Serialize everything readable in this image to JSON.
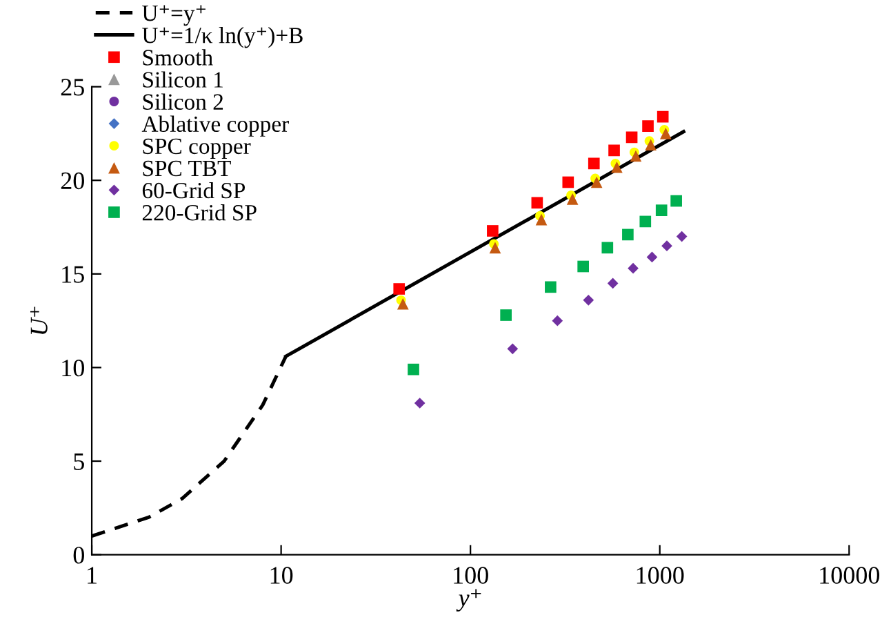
{
  "chart_data": {
    "type": "scatter",
    "xlabel": "y⁺",
    "ylabel": "U⁺",
    "log": "x",
    "xlim": [
      1,
      10000
    ],
    "xticks": [
      1,
      10,
      100,
      1000,
      10000
    ],
    "ylim": [
      0,
      25
    ],
    "yticks": [
      0,
      5,
      10,
      15,
      20,
      25
    ],
    "grid": false,
    "legend": "top left",
    "series": [
      {
        "name": "U⁺=y⁺",
        "type": "line",
        "line_style": "dashed",
        "marker": "none",
        "color": "#000000",
        "x": [
          1,
          2,
          3,
          5,
          8,
          10.6
        ],
        "values": [
          1,
          2,
          3,
          5,
          8,
          10.6
        ]
      },
      {
        "name": "U⁺=1/κ ln(y⁺)+B",
        "type": "line",
        "line_style": "solid",
        "marker": "none",
        "color": "#000000",
        "x": [
          10.6,
          1336
        ],
        "values": [
          10.6,
          22.6
        ]
      },
      {
        "name": "Smooth",
        "marker": "square",
        "color": "#ff0000",
        "x": [
          42,
          131,
          225,
          328,
          449,
          574,
          711,
          866,
          1038
        ],
        "values": [
          14.2,
          17.3,
          18.8,
          19.9,
          20.9,
          21.6,
          22.3,
          22.9,
          23.4
        ]
      },
      {
        "name": "Silicon 1",
        "marker": "triangle",
        "color": "#999999"
      },
      {
        "name": "Silicon 2",
        "marker": "circle",
        "color": "#7030a0"
      },
      {
        "name": "Ablative copper",
        "marker": "diamond",
        "color": "#4472c4"
      },
      {
        "name": "SPC copper",
        "marker": "circle",
        "color": "#ffff00",
        "x": [
          43,
          133,
          233,
          340,
          456,
          583,
          734,
          881,
          1057
        ],
        "values": [
          13.6,
          16.6,
          18.1,
          19.2,
          20.1,
          20.9,
          21.5,
          22.1,
          22.7
        ]
      },
      {
        "name": "SPC TBT",
        "marker": "triangle",
        "color": "#c55a11",
        "x": [
          44,
          135,
          237,
          346,
          464,
          593,
          747,
          896,
          1075
        ],
        "values": [
          13.4,
          16.4,
          17.9,
          19.0,
          19.9,
          20.7,
          21.3,
          21.9,
          22.5
        ]
      },
      {
        "name": "60-Grid SP",
        "marker": "diamond",
        "color": "#7030a0",
        "x": [
          54,
          167,
          288,
          420,
          565,
          723,
          910,
          1090,
          1307
        ],
        "values": [
          8.1,
          11.0,
          12.5,
          13.6,
          14.5,
          15.3,
          15.9,
          16.5,
          17.0
        ]
      },
      {
        "name": "220-Grid SP",
        "marker": "square",
        "color": "#00b050",
        "x": [
          50,
          154,
          265,
          394,
          529,
          678,
          839,
          1021,
          1222
        ],
        "values": [
          9.9,
          12.8,
          14.3,
          15.4,
          16.4,
          17.1,
          17.8,
          18.4,
          18.9
        ]
      }
    ]
  }
}
